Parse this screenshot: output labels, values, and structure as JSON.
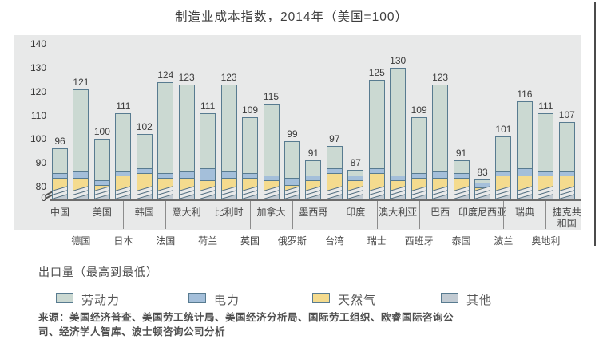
{
  "title": "制造业成本指数，2014年（美国=100）",
  "note": "出口量（最高到最低）",
  "source_line1": "来源：美国经济普查、美国劳工统计局、美国经济分析局、国际劳工组织、欧睿国际咨询公",
  "source_line2": "司、经济学人智库、波士顿咨询公司分析",
  "colors": {
    "labor": "#cbd9d2",
    "electricity": "#a4bfda",
    "gas": "#f4db8e",
    "other": "#c2cbd3",
    "bar_border": "#587b90",
    "plot_background": "#e8e9e9"
  },
  "legend": [
    {
      "label": "劳动力",
      "color": "#cbd9d2"
    },
    {
      "label": "电力",
      "color": "#a4bfda"
    },
    {
      "label": "天然气",
      "color": "#f4db8e"
    },
    {
      "label": "其他",
      "color": "#c2cbd3"
    }
  ],
  "y_axis": {
    "ticks": [
      140,
      130,
      120,
      110,
      100,
      90,
      80
    ],
    "zero_label": "0",
    "has_break": true
  },
  "chart_data": {
    "type": "bar",
    "stacked": true,
    "title": "制造业成本指数，2014年（美国=100）",
    "ylim": [
      0,
      140
    ],
    "axis_break_between": [
      0,
      80
    ],
    "series_order_bottom_to_top": [
      "其他",
      "天然气",
      "电力",
      "劳动力"
    ],
    "segment_boundaries_estimated": true,
    "bars": [
      {
        "country": "中国",
        "total": 96,
        "other_top": 78,
        "gas_top": 84,
        "elec_top": 86
      },
      {
        "country": "德国",
        "total": 121,
        "other_top": 78,
        "gas_top": 84,
        "elec_top": 87
      },
      {
        "country": "美国",
        "total": 100,
        "other_top": 78,
        "gas_top": 81,
        "elec_top": 83
      },
      {
        "country": "日本",
        "total": 111,
        "other_top": 78,
        "gas_top": 85,
        "elec_top": 87
      },
      {
        "country": "韩国",
        "total": 102,
        "other_top": 78,
        "gas_top": 86,
        "elec_top": 88
      },
      {
        "country": "法国",
        "total": 124,
        "other_top": 78,
        "gas_top": 84,
        "elec_top": 86
      },
      {
        "country": "意大利",
        "total": 123,
        "other_top": 78,
        "gas_top": 84,
        "elec_top": 87
      },
      {
        "country": "荷兰",
        "total": 111,
        "other_top": 78,
        "gas_top": 83,
        "elec_top": 88
      },
      {
        "country": "比利时",
        "total": 123,
        "other_top": 78,
        "gas_top": 84,
        "elec_top": 87
      },
      {
        "country": "英国",
        "total": 109,
        "other_top": 78,
        "gas_top": 84,
        "elec_top": 86
      },
      {
        "country": "加拿大",
        "total": 115,
        "other_top": 78,
        "gas_top": 83,
        "elec_top": 85
      },
      {
        "country": "俄罗斯",
        "total": 99,
        "other_top": 78,
        "gas_top": 81,
        "elec_top": 84
      },
      {
        "country": "墨西哥",
        "total": 91,
        "other_top": 78,
        "gas_top": 83,
        "elec_top": 85
      },
      {
        "country": "台湾",
        "total": 97,
        "other_top": 78,
        "gas_top": 86,
        "elec_top": 88
      },
      {
        "country": "印度",
        "total": 87,
        "other_top": 78,
        "gas_top": 83,
        "elec_top": 85
      },
      {
        "country": "瑞士",
        "total": 125,
        "other_top": 78,
        "gas_top": 86,
        "elec_top": 88
      },
      {
        "country": "澳大利亚",
        "total": 130,
        "other_top": 78,
        "gas_top": 83,
        "elec_top": 85
      },
      {
        "country": "西班牙",
        "total": 109,
        "other_top": 78,
        "gas_top": 84,
        "elec_top": 86
      },
      {
        "country": "巴西",
        "total": 123,
        "other_top": 78,
        "gas_top": 84,
        "elec_top": 87
      },
      {
        "country": "泰国",
        "total": 91,
        "other_top": 78,
        "gas_top": 84,
        "elec_top": 86
      },
      {
        "country": "印度尼西亚",
        "total": 83,
        "other_top": 78,
        "gas_top": 80,
        "elec_top": 82
      },
      {
        "country": "波兰",
        "total": 101,
        "other_top": 78,
        "gas_top": 85,
        "elec_top": 87
      },
      {
        "country": "瑞典",
        "total": 116,
        "other_top": 78,
        "gas_top": 85,
        "elec_top": 88
      },
      {
        "country": "奥地利",
        "total": 111,
        "other_top": 78,
        "gas_top": 85,
        "elec_top": 87
      },
      {
        "country": "捷克共和国",
        "total": 107,
        "other_top": 78,
        "gas_top": 85,
        "elec_top": 87
      }
    ]
  }
}
